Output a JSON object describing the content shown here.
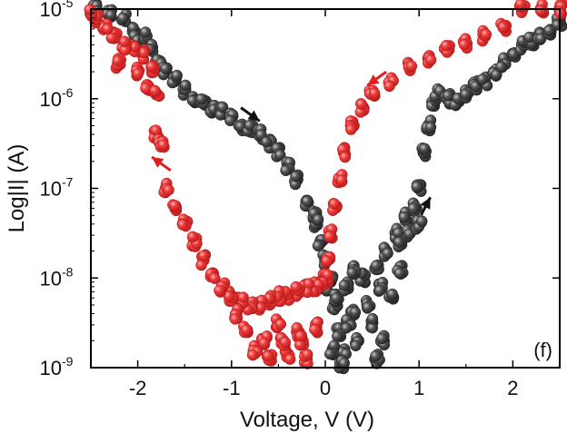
{
  "chart_data": {
    "type": "scatter",
    "title": "",
    "xlabel": "Voltage, V (V)",
    "ylabel": "Log|I| (A)",
    "xlim": [
      -2.5,
      2.5
    ],
    "ylim_log10": [
      -9,
      -5
    ],
    "y_scale": "log",
    "x_ticks": [
      -2,
      -1,
      0,
      1,
      2
    ],
    "x_tick_labels": [
      "-2",
      "-1",
      "0",
      "1",
      "2"
    ],
    "y_tick_exponents": [
      -9,
      -8,
      -7,
      -6,
      -5
    ],
    "y_tick_base": "10",
    "panel_label": "(f)",
    "grid": false,
    "legend": "none",
    "series": [
      {
        "color": "#3c3c3c",
        "points": [
          [
            -2.45,
            -5.0
          ],
          [
            -2.3,
            -5.05
          ],
          [
            -2.15,
            -5.1
          ],
          [
            -2.05,
            -5.25
          ],
          [
            -2.0,
            -5.4
          ],
          [
            -1.92,
            -5.3
          ],
          [
            -1.85,
            -5.45
          ],
          [
            -1.78,
            -5.6
          ],
          [
            -1.7,
            -5.7
          ],
          [
            -1.6,
            -5.8
          ],
          [
            -1.5,
            -5.9
          ],
          [
            -1.4,
            -6.0
          ],
          [
            -1.3,
            -6.05
          ],
          [
            -1.2,
            -6.1
          ],
          [
            -1.1,
            -6.15
          ],
          [
            -1.0,
            -6.2
          ],
          [
            -0.9,
            -6.3
          ],
          [
            -0.8,
            -6.35
          ],
          [
            -0.7,
            -6.4
          ],
          [
            -0.6,
            -6.5
          ],
          [
            -0.5,
            -6.6
          ],
          [
            -0.4,
            -6.75
          ],
          [
            -0.3,
            -6.9
          ],
          [
            -0.2,
            -7.15
          ],
          [
            -0.1,
            -7.4
          ],
          [
            -0.05,
            -7.6
          ],
          [
            0.0,
            -7.8
          ],
          [
            0.05,
            -8.0
          ],
          [
            0.1,
            -8.3
          ],
          [
            0.15,
            -8.6
          ],
          [
            0.2,
            -8.8
          ],
          [
            0.3,
            -8.4
          ],
          [
            0.35,
            -8.7
          ],
          [
            0.4,
            -8.0
          ],
          [
            0.5,
            -8.5
          ],
          [
            0.55,
            -7.9
          ],
          [
            0.6,
            -8.7
          ],
          [
            0.65,
            -7.7
          ],
          [
            0.7,
            -8.2
          ],
          [
            0.75,
            -7.5
          ],
          [
            0.8,
            -7.9
          ],
          [
            0.85,
            -7.3
          ],
          [
            0.9,
            -7.5
          ],
          [
            0.95,
            -7.2
          ],
          [
            1.0,
            -7.0
          ],
          [
            1.05,
            -6.6
          ],
          [
            1.1,
            -6.3
          ],
          [
            1.15,
            -6.05
          ],
          [
            1.2,
            -5.95
          ],
          [
            1.3,
            -6.0
          ],
          [
            1.4,
            -6.05
          ],
          [
            1.5,
            -5.95
          ],
          [
            1.6,
            -5.85
          ],
          [
            1.7,
            -5.8
          ],
          [
            1.8,
            -5.7
          ],
          [
            1.9,
            -5.6
          ],
          [
            2.0,
            -5.5
          ],
          [
            2.1,
            -5.4
          ],
          [
            2.2,
            -5.35
          ],
          [
            2.3,
            -5.3
          ],
          [
            2.4,
            -5.25
          ],
          [
            2.5,
            -5.15
          ],
          [
            -0.1,
            -7.3
          ],
          [
            0.0,
            -8.1
          ],
          [
            0.08,
            -8.8
          ],
          [
            0.18,
            -8.95
          ],
          [
            0.25,
            -8.5
          ],
          [
            0.45,
            -8.3
          ],
          [
            0.55,
            -8.9
          ],
          [
            0.12,
            -8.2
          ],
          [
            0.22,
            -8.1
          ],
          [
            0.3,
            -7.9
          ],
          [
            0.6,
            -8.1
          ],
          [
            0.8,
            -7.6
          ],
          [
            1.0,
            -7.4
          ]
        ]
      },
      {
        "color": "#ee3b3b",
        "points": [
          [
            2.5,
            -5.0
          ],
          [
            2.3,
            -5.0
          ],
          [
            2.1,
            -5.0
          ],
          [
            1.9,
            -5.2
          ],
          [
            1.7,
            -5.3
          ],
          [
            1.5,
            -5.38
          ],
          [
            1.3,
            -5.45
          ],
          [
            1.1,
            -5.55
          ],
          [
            0.9,
            -5.65
          ],
          [
            0.7,
            -5.8
          ],
          [
            0.5,
            -5.95
          ],
          [
            0.4,
            -6.1
          ],
          [
            0.3,
            -6.3
          ],
          [
            0.2,
            -6.6
          ],
          [
            0.15,
            -6.9
          ],
          [
            0.1,
            -7.2
          ],
          [
            0.05,
            -7.5
          ],
          [
            0.02,
            -7.8
          ],
          [
            0.0,
            -8.0
          ],
          [
            -0.05,
            -8.05
          ],
          [
            -0.1,
            -8.1
          ],
          [
            -0.2,
            -8.1
          ],
          [
            -0.3,
            -8.15
          ],
          [
            -0.4,
            -8.2
          ],
          [
            -0.5,
            -8.2
          ],
          [
            -0.6,
            -8.25
          ],
          [
            -0.7,
            -8.3
          ],
          [
            -0.8,
            -8.3
          ],
          [
            -0.9,
            -8.25
          ],
          [
            -1.0,
            -8.2
          ],
          [
            -1.1,
            -8.1
          ],
          [
            -1.2,
            -7.95
          ],
          [
            -1.3,
            -7.8
          ],
          [
            -1.4,
            -7.6
          ],
          [
            -1.5,
            -7.4
          ],
          [
            -1.6,
            -7.2
          ],
          [
            -1.7,
            -7.0
          ],
          [
            -1.8,
            -6.4
          ],
          [
            -1.75,
            -6.5
          ],
          [
            -1.85,
            -5.65
          ],
          [
            -1.95,
            -5.5
          ],
          [
            -2.05,
            -5.45
          ],
          [
            -2.15,
            -5.4
          ],
          [
            -2.25,
            -5.3
          ],
          [
            -2.35,
            -5.2
          ],
          [
            -2.45,
            -5.1
          ],
          [
            -2.5,
            -5.05
          ],
          [
            -2.2,
            -5.6
          ],
          [
            -2.0,
            -5.7
          ],
          [
            -1.9,
            -5.85
          ],
          [
            -1.8,
            -5.95
          ],
          [
            -0.75,
            -8.8
          ],
          [
            -0.6,
            -8.9
          ],
          [
            -0.5,
            -8.5
          ],
          [
            -0.4,
            -8.85
          ],
          [
            -0.3,
            -8.6
          ],
          [
            -0.2,
            -8.9
          ],
          [
            -0.1,
            -8.55
          ],
          [
            -0.85,
            -8.6
          ],
          [
            -0.95,
            -8.4
          ],
          [
            -0.65,
            -8.7
          ],
          [
            -0.45,
            -8.7
          ],
          [
            -0.25,
            -8.7
          ]
        ]
      }
    ],
    "annotations": [
      {
        "kind": "arrow",
        "color": "#111111",
        "from": [
          -0.9,
          -6.1
        ],
        "to": [
          -0.7,
          -6.25
        ]
      },
      {
        "kind": "arrow",
        "color": "#111111",
        "from": [
          1.02,
          -7.3
        ],
        "to": [
          1.12,
          -7.1
        ]
      },
      {
        "kind": "arrow",
        "color": "#e02020",
        "from": [
          0.65,
          -5.7
        ],
        "to": [
          0.45,
          -5.85
        ]
      },
      {
        "kind": "arrow",
        "color": "#e02020",
        "from": [
          -1.65,
          -6.8
        ],
        "to": [
          -1.85,
          -6.65
        ]
      }
    ]
  }
}
